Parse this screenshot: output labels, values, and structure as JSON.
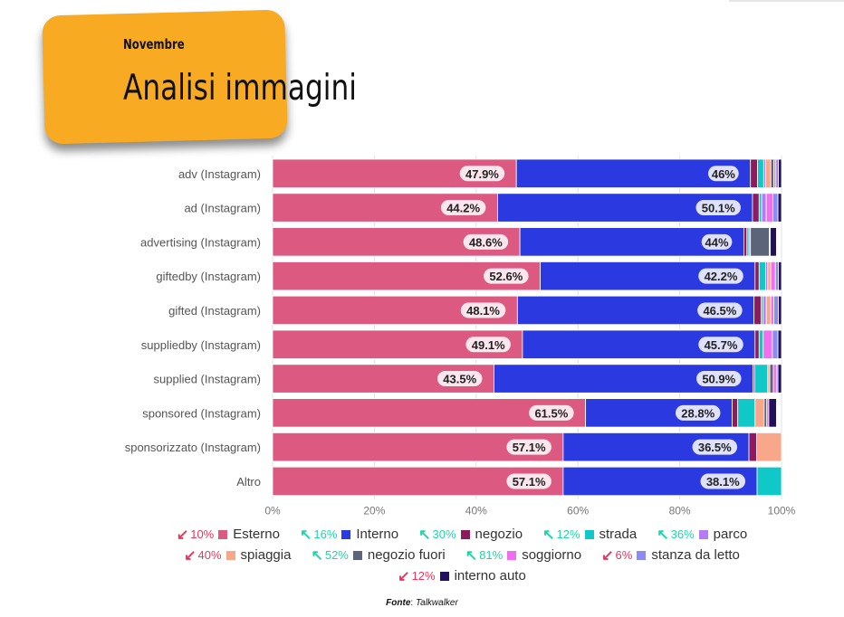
{
  "header": {
    "subtitle": "Novembre",
    "title": "Analisi immagini"
  },
  "source": {
    "label": "Fonte",
    "value": "Talkwalker"
  },
  "colors": {
    "Esterno": "#dc5a82",
    "Interno": "#2b3ae0",
    "negozio": "#8e1b5d",
    "strada": "#10c8c8",
    "parco": "#b57bf5",
    "spiaggia": "#f9a78a",
    "negozio fuori": "#5c6479",
    "soggiorno": "#ef6fee",
    "stanza da letto": "#8a8cf2",
    "interno auto": "#21105a"
  },
  "legend": [
    [
      {
        "trend": "down",
        "pct": "10%",
        "label": "Esterno"
      },
      {
        "trend": "up",
        "pct": "16%",
        "label": "Interno"
      },
      {
        "trend": "up",
        "pct": "30%",
        "label": "negozio"
      },
      {
        "trend": "up",
        "pct": "12%",
        "label": "strada"
      },
      {
        "trend": "up",
        "pct": "36%",
        "label": "parco"
      }
    ],
    [
      {
        "trend": "down",
        "pct": "40%",
        "label": "spiaggia"
      },
      {
        "trend": "up",
        "pct": "52%",
        "label": "negozio fuori"
      },
      {
        "trend": "up",
        "pct": "81%",
        "label": "soggiorno"
      },
      {
        "trend": "down",
        "pct": "6%",
        "label": "stanza da letto"
      }
    ],
    [
      {
        "trend": "down",
        "pct": "12%",
        "label": "interno auto"
      }
    ]
  ],
  "chart_data": {
    "type": "bar",
    "orientation": "horizontal",
    "stacked": true,
    "categories": [
      "adv (Instagram)",
      "ad (Instagram)",
      "advertising (Instagram)",
      "giftedby (Instagram)",
      "gifted (Instagram)",
      "suppliedby (Instagram)",
      "supplied (Instagram)",
      "sponsored (Instagram)",
      "sponsorizzato (Instagram)",
      "Altro"
    ],
    "xlim": [
      0,
      100
    ],
    "xticks": [
      "0%",
      "20%",
      "40%",
      "60%",
      "80%",
      "100%"
    ],
    "grid": true,
    "series": [
      {
        "name": "Esterno",
        "values": [
          47.9,
          44.2,
          48.6,
          52.6,
          48.1,
          49.1,
          43.5,
          61.5,
          57.1,
          57.1
        ],
        "labels": [
          "47.9%",
          "44.2%",
          "48.6%",
          "52.6%",
          "48.1%",
          "49.1%",
          "43.5%",
          "61.5%",
          "57.1%",
          "57.1%"
        ]
      },
      {
        "name": "Interno",
        "values": [
          46,
          50.1,
          44,
          42.2,
          46.5,
          45.7,
          50.9,
          28.8,
          36.5,
          38.1
        ],
        "labels": [
          "46%",
          "50.1%",
          "44%",
          "42.2%",
          "46.5%",
          "45.7%",
          "50.9%",
          "28.8%",
          "36.5%",
          "38.1%"
        ]
      },
      {
        "name": "negozio",
        "values": [
          1.4,
          1.3,
          0.6,
          0.8,
          1.4,
          0.8,
          0.3,
          1.1,
          1.5,
          0
        ]
      },
      {
        "name": "strada",
        "values": [
          1.2,
          0.5,
          0.4,
          1.3,
          0.4,
          0.8,
          2.6,
          3.4,
          0,
          4.8
        ]
      },
      {
        "name": "parco",
        "values": [
          0.4,
          0.9,
          0.3,
          0.4,
          0.6,
          0,
          0,
          0,
          0,
          0
        ]
      },
      {
        "name": "spiaggia",
        "values": [
          1.0,
          0,
          0,
          0.6,
          0.9,
          0,
          0.4,
          1.8,
          4.9,
          0
        ]
      },
      {
        "name": "negozio fuori",
        "values": [
          0.6,
          0,
          3.7,
          0,
          0,
          0,
          0.7,
          0.5,
          0,
          0
        ]
      },
      {
        "name": "soggiorno",
        "values": [
          0.4,
          1.3,
          0,
          0.9,
          0.6,
          1.8,
          0.6,
          0.4,
          0,
          0
        ]
      },
      {
        "name": "stanza da letto",
        "values": [
          0.5,
          1.0,
          0.2,
          0.6,
          0.9,
          1.1,
          0.3,
          0,
          0,
          0
        ]
      },
      {
        "name": "interno auto",
        "values": [
          0.6,
          0.7,
          1.2,
          0.6,
          0.6,
          0.7,
          0.7,
          1.5,
          0,
          0
        ]
      }
    ]
  }
}
